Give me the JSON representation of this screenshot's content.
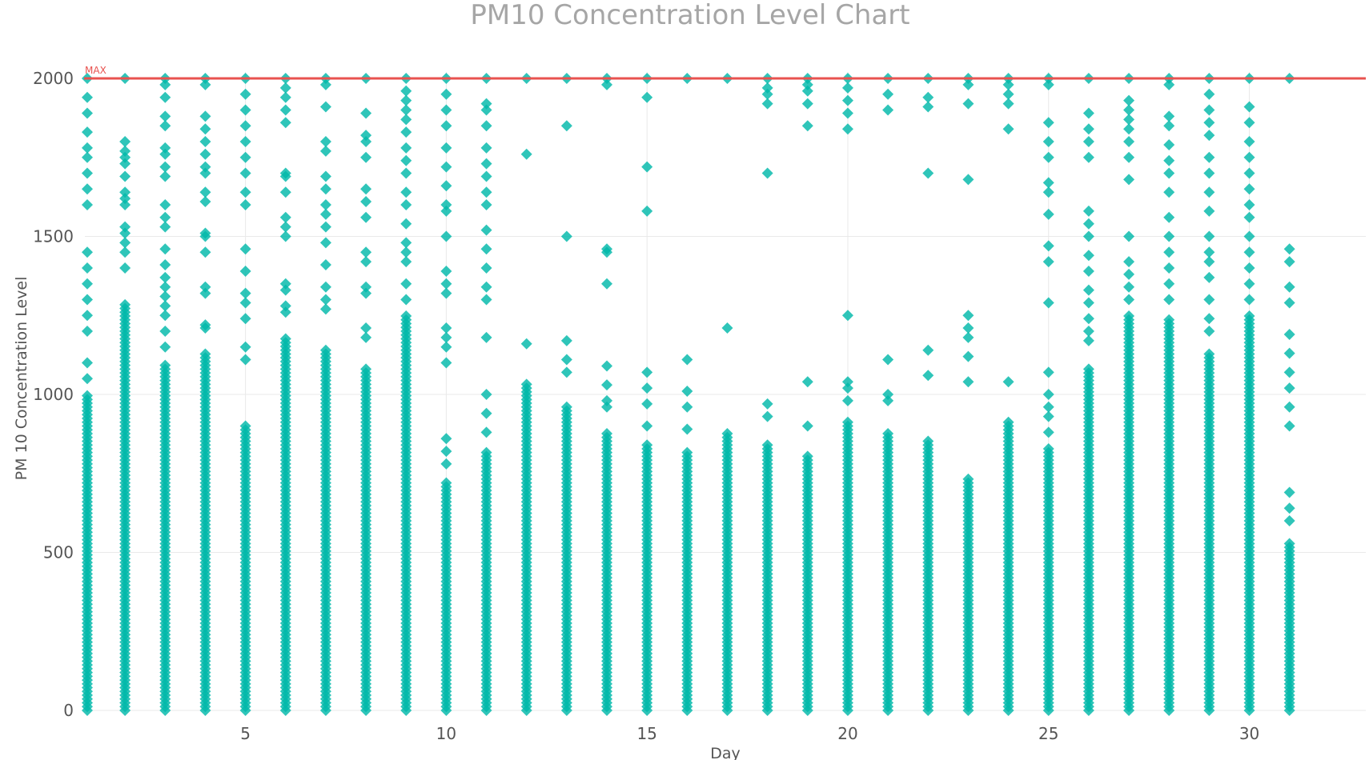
{
  "chart_data": {
    "type": "scatter",
    "title": "PM10 Concentration Level Chart",
    "xlabel": "Day",
    "ylabel": "PM 10 Concentration Level",
    "xlim": [
      1,
      32.9
    ],
    "ylim": [
      0,
      2000
    ],
    "x_ticks": [
      5,
      10,
      15,
      20,
      25,
      30
    ],
    "y_ticks": [
      0,
      500,
      1000,
      1500,
      2000
    ],
    "grid": true,
    "marker": "diamond",
    "point_color": "#01B8AA",
    "reference_line": {
      "label": "MAX",
      "value": 2000,
      "color": "#E8524F"
    },
    "days": [
      {
        "day": 1,
        "dense_max": 1000,
        "outliers": [
          1050,
          1100,
          1200,
          1250,
          1300,
          1350,
          1400,
          1450,
          1600,
          1650,
          1700,
          1750,
          1780,
          1830,
          1890,
          1940,
          2000
        ]
      },
      {
        "day": 2,
        "dense_max": 1290,
        "outliers": [
          1400,
          1450,
          1480,
          1510,
          1530,
          1600,
          1620,
          1640,
          1690,
          1730,
          1750,
          1770,
          1800,
          2000
        ]
      },
      {
        "day": 3,
        "dense_max": 1100,
        "outliers": [
          1150,
          1200,
          1250,
          1280,
          1310,
          1340,
          1370,
          1410,
          1460,
          1530,
          1560,
          1600,
          1690,
          1720,
          1760,
          1780,
          1850,
          1880,
          1940,
          1980,
          2000
        ]
      },
      {
        "day": 4,
        "dense_max": 1130,
        "outliers": [
          1210,
          1220,
          1320,
          1340,
          1450,
          1500,
          1510,
          1610,
          1640,
          1700,
          1720,
          1760,
          1800,
          1840,
          1880,
          1980,
          2000
        ]
      },
      {
        "day": 5,
        "dense_max": 900,
        "outliers": [
          1110,
          1150,
          1240,
          1290,
          1320,
          1390,
          1460,
          1600,
          1640,
          1700,
          1750,
          1800,
          1850,
          1900,
          1950,
          2000
        ]
      },
      {
        "day": 6,
        "dense_max": 1180,
        "outliers": [
          1260,
          1280,
          1330,
          1350,
          1500,
          1530,
          1560,
          1640,
          1690,
          1700,
          1860,
          1900,
          1940,
          1970,
          2000
        ]
      },
      {
        "day": 7,
        "dense_max": 1150,
        "outliers": [
          1270,
          1300,
          1340,
          1410,
          1480,
          1530,
          1570,
          1600,
          1650,
          1690,
          1770,
          1800,
          1910,
          1980,
          2000
        ]
      },
      {
        "day": 8,
        "dense_max": 1080,
        "outliers": [
          1180,
          1210,
          1320,
          1340,
          1420,
          1450,
          1560,
          1610,
          1650,
          1750,
          1800,
          1820,
          1890,
          2000
        ]
      },
      {
        "day": 9,
        "dense_max": 1250,
        "outliers": [
          1300,
          1350,
          1420,
          1450,
          1480,
          1540,
          1600,
          1640,
          1700,
          1740,
          1780,
          1830,
          1870,
          1900,
          1930,
          1960,
          2000
        ]
      },
      {
        "day": 10,
        "dense_max": 720,
        "outliers": [
          780,
          820,
          860,
          1100,
          1150,
          1180,
          1210,
          1320,
          1350,
          1390,
          1500,
          1580,
          1600,
          1660,
          1720,
          1780,
          1850,
          1900,
          1950,
          2000
        ]
      },
      {
        "day": 11,
        "dense_max": 820,
        "outliers": [
          880,
          940,
          1000,
          1180,
          1300,
          1340,
          1400,
          1460,
          1520,
          1600,
          1640,
          1690,
          1730,
          1780,
          1850,
          1900,
          1920,
          2000
        ]
      },
      {
        "day": 12,
        "dense_max": 1040,
        "outliers": [
          1160,
          1760,
          2000
        ]
      },
      {
        "day": 13,
        "dense_max": 960,
        "outliers": [
          1070,
          1110,
          1170,
          1500,
          1850,
          2000
        ]
      },
      {
        "day": 14,
        "dense_max": 880,
        "outliers": [
          960,
          980,
          1030,
          1090,
          1350,
          1450,
          1460,
          1980,
          2000
        ]
      },
      {
        "day": 15,
        "dense_max": 850,
        "outliers": [
          900,
          970,
          1020,
          1070,
          1580,
          1720,
          1940,
          2000
        ]
      },
      {
        "day": 16,
        "dense_max": 820,
        "outliers": [
          890,
          960,
          1010,
          1110,
          2000
        ]
      },
      {
        "day": 17,
        "dense_max": 880,
        "outliers": [
          1210,
          2000
        ]
      },
      {
        "day": 18,
        "dense_max": 850,
        "outliers": [
          930,
          970,
          1700,
          1920,
          1950,
          1970,
          2000
        ]
      },
      {
        "day": 19,
        "dense_max": 810,
        "outliers": [
          900,
          1040,
          1850,
          1920,
          1960,
          1980,
          2000
        ]
      },
      {
        "day": 20,
        "dense_max": 920,
        "outliers": [
          980,
          1020,
          1040,
          1250,
          1840,
          1890,
          1930,
          1970,
          2000
        ]
      },
      {
        "day": 21,
        "dense_max": 880,
        "outliers": [
          980,
          1000,
          1110,
          1900,
          1950,
          2000
        ]
      },
      {
        "day": 22,
        "dense_max": 860,
        "outliers": [
          1060,
          1140,
          1700,
          1910,
          1940,
          2000
        ]
      },
      {
        "day": 23,
        "dense_max": 740,
        "outliers": [
          1040,
          1120,
          1180,
          1210,
          1250,
          1680,
          1920,
          1980,
          2000
        ]
      },
      {
        "day": 24,
        "dense_max": 920,
        "outliers": [
          1040,
          1840,
          1920,
          1950,
          1980,
          2000
        ]
      },
      {
        "day": 25,
        "dense_max": 830,
        "outliers": [
          880,
          930,
          960,
          1000,
          1070,
          1290,
          1420,
          1470,
          1570,
          1640,
          1670,
          1750,
          1800,
          1860,
          1980,
          2000
        ]
      },
      {
        "day": 26,
        "dense_max": 1090,
        "outliers": [
          1170,
          1200,
          1240,
          1290,
          1330,
          1390,
          1440,
          1500,
          1540,
          1580,
          1750,
          1800,
          1840,
          1890,
          2000
        ]
      },
      {
        "day": 27,
        "dense_max": 1250,
        "outliers": [
          1300,
          1340,
          1380,
          1420,
          1500,
          1680,
          1750,
          1800,
          1840,
          1870,
          1900,
          1930,
          2000
        ]
      },
      {
        "day": 28,
        "dense_max": 1240,
        "outliers": [
          1300,
          1350,
          1400,
          1450,
          1500,
          1560,
          1640,
          1700,
          1740,
          1790,
          1850,
          1880,
          1980,
          2000
        ]
      },
      {
        "day": 29,
        "dense_max": 1130,
        "outliers": [
          1200,
          1240,
          1300,
          1370,
          1420,
          1450,
          1500,
          1580,
          1640,
          1700,
          1750,
          1820,
          1860,
          1900,
          1950,
          2000
        ]
      },
      {
        "day": 30,
        "dense_max": 1250,
        "outliers": [
          1300,
          1350,
          1400,
          1450,
          1500,
          1560,
          1600,
          1650,
          1700,
          1750,
          1800,
          1860,
          1910,
          2000
        ]
      },
      {
        "day": 31,
        "dense_max": 530,
        "outliers": [
          600,
          640,
          690,
          900,
          960,
          1020,
          1070,
          1130,
          1190,
          1290,
          1340,
          1420,
          1460,
          2000
        ]
      }
    ]
  }
}
